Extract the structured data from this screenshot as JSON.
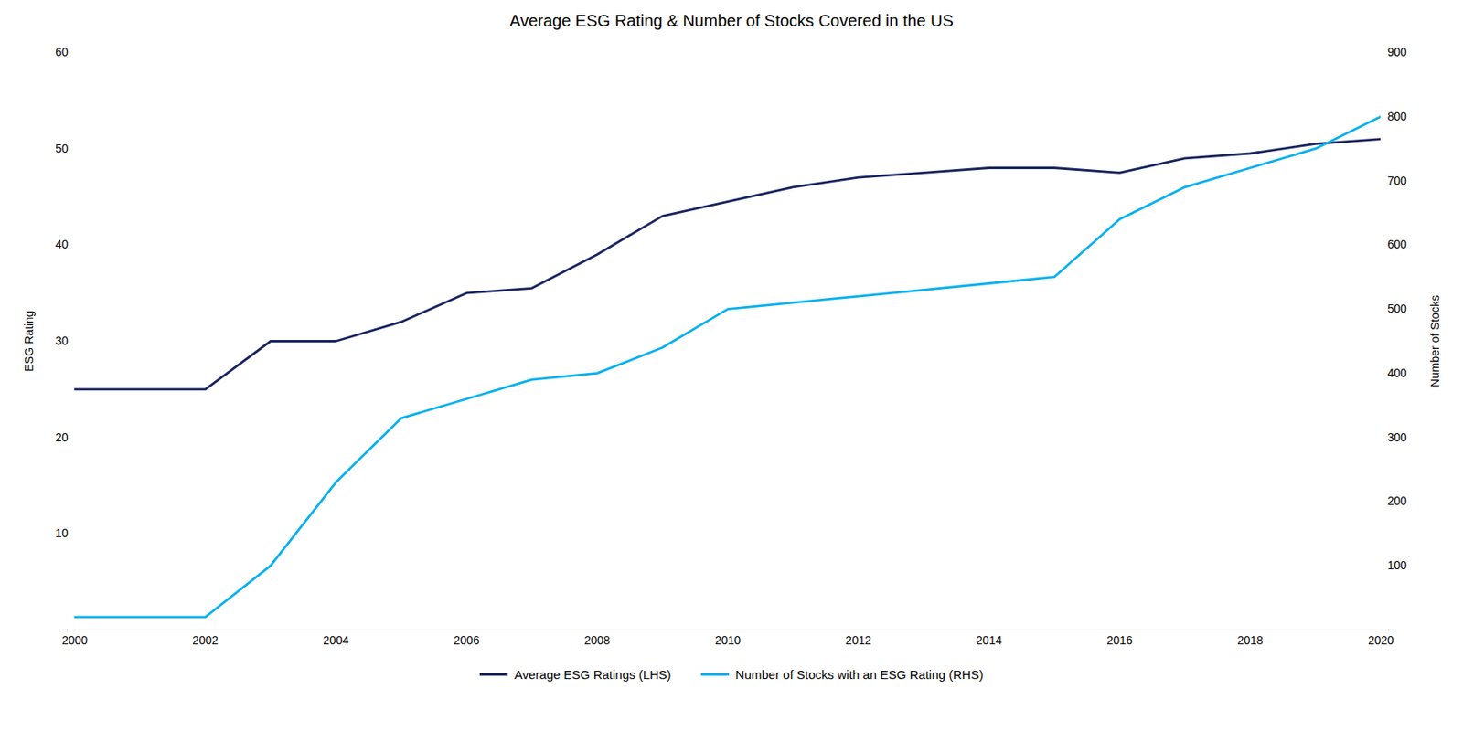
{
  "chart_data": {
    "type": "line",
    "title": "Average ESG Rating & Number of Stocks Covered in the US",
    "ylabel": "ESG Rating",
    "y2label": "Number of Stocks",
    "x": [
      2000,
      2001,
      2002,
      2003,
      2004,
      2005,
      2006,
      2007,
      2008,
      2009,
      2010,
      2011,
      2012,
      2013,
      2014,
      2015,
      2016,
      2017,
      2018,
      2019,
      2020
    ],
    "series": [
      {
        "name": "Average ESG Ratings (LHS)",
        "color": "#1a2560",
        "values": [
          25.0,
          25.0,
          25.0,
          30.0,
          30.0,
          32.0,
          35.0,
          35.5,
          39.0,
          43.0,
          44.5,
          46.0,
          47.0,
          47.5,
          48.0,
          48.0,
          47.5,
          49.0,
          49.5,
          50.5,
          51.0
        ]
      },
      {
        "name": "Number of Stocks with an ESG Rating (RHS)",
        "color": "#00b0f0",
        "axis": "y2",
        "values": [
          20,
          20,
          20,
          100,
          230,
          330,
          360,
          390,
          400,
          440,
          500,
          510,
          520,
          530,
          540,
          550,
          640,
          690,
          720,
          750,
          800
        ]
      }
    ],
    "xlim": [
      2000,
      2020
    ],
    "xticks": [
      2000,
      2002,
      2004,
      2006,
      2008,
      2010,
      2012,
      2014,
      2016,
      2018,
      2020
    ],
    "ylim": [
      0,
      60
    ],
    "yticks": [
      {
        "value": 0,
        "label": "-"
      },
      10,
      20,
      30,
      40,
      50,
      60
    ],
    "y2lim": [
      0,
      900
    ],
    "y2ticks": [
      {
        "value": 0,
        "label": "-"
      },
      100,
      200,
      300,
      400,
      500,
      600,
      700,
      800,
      900
    ],
    "grid": false,
    "legend": "bottom"
  }
}
